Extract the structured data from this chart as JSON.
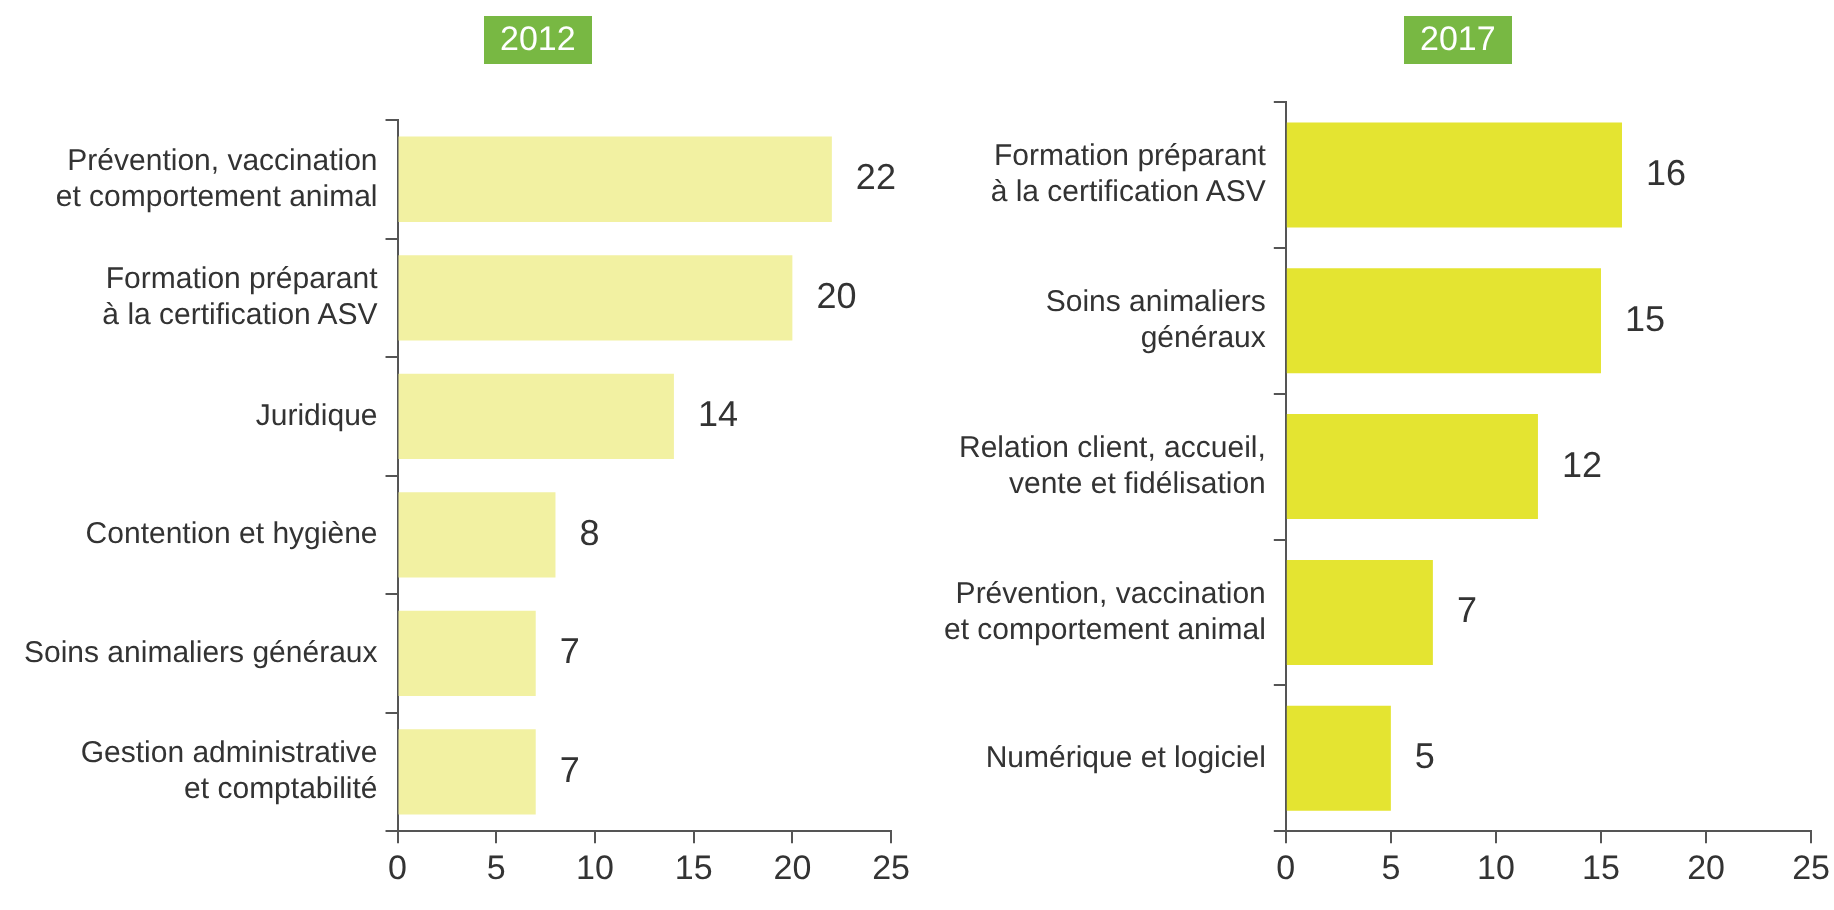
{
  "chart_data": [
    {
      "type": "bar",
      "orientation": "horizontal",
      "title": "2012",
      "categories": [
        "Prévention, vaccination\net comportement animal",
        "Formation préparant\nà la certification ASV",
        "Juridique",
        "Contention et hygiène",
        "Soins animaliers généraux",
        "Gestion administrative\net comptabilité"
      ],
      "values": [
        22,
        20,
        14,
        8,
        7,
        7
      ],
      "color": "#f2f1a2",
      "xlim": [
        0,
        25
      ],
      "xticks": [
        0,
        5,
        10,
        15,
        20,
        25
      ],
      "data_labels": true,
      "grid": false,
      "legend": false
    },
    {
      "type": "bar",
      "orientation": "horizontal",
      "title": "2017",
      "categories": [
        "Formation préparant\nà la certification ASV",
        "Soins animaliers\ngénéraux",
        "Relation client, accueil,\nvente et fidélisation",
        "Prévention, vaccination\net comportement animal",
        "Numérique et logiciel"
      ],
      "values": [
        16,
        15,
        12,
        7,
        5
      ],
      "color": "#e4e431",
      "xlim": [
        0,
        25
      ],
      "xticks": [
        0,
        5,
        10,
        15,
        20,
        25
      ],
      "data_labels": true,
      "grid": false,
      "legend": false
    }
  ]
}
